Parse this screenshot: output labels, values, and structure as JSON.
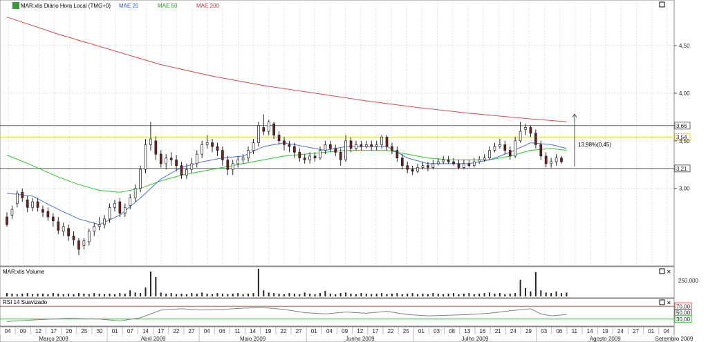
{
  "legend": {
    "title": "MAR:xlis Diário Hora Local (TMG+0)",
    "ma20": "MAE 20",
    "ma50": "MAE 50",
    "ma200": "MAE 200"
  },
  "volume_panel": {
    "title": "MAR:xlis Volume",
    "scale_label": "250.000"
  },
  "rsi_panel": {
    "title": "RSI 14 Suavizado",
    "upper_label": "70,00",
    "mid_label": "50,00",
    "lower_label": "30,00"
  },
  "annotation": {
    "text": "13,98%(0,45)"
  },
  "colors": {
    "ma20": "#4a6fe0",
    "ma50": "#28c828",
    "ma200": "#e04848",
    "rsi_line": "#808080",
    "yellow_line": "#e8e000",
    "candle": "#7a1a1a"
  },
  "chart_data": {
    "type": "candlestick",
    "price_axis": {
      "range": [
        2.2,
        4.95
      ],
      "ticks": [
        {
          "value": 4.5,
          "label": "4,50"
        },
        {
          "value": 4.0,
          "label": "4,00"
        },
        {
          "value": 3.5,
          "label": "3,50"
        },
        {
          "value": 3.0,
          "label": "3,00"
        }
      ],
      "levels": [
        {
          "name": "upper-line",
          "value": 3.66,
          "label": "3,66",
          "color": "#606060"
        },
        {
          "name": "yellow-line",
          "value": 3.54,
          "label": "3,54",
          "color": "#e8e000"
        },
        {
          "name": "lower-line",
          "value": 3.21,
          "label": "3,21",
          "color": "#606060"
        }
      ]
    },
    "x_axis": {
      "days": [
        "04",
        "09",
        "12",
        "17",
        "20",
        "25",
        "30",
        "01",
        "07",
        "14",
        "17",
        "22",
        "27",
        "04",
        "06",
        "11",
        "14",
        "19",
        "22",
        "27",
        "01",
        "04",
        "09",
        "12",
        "17",
        "22",
        "25",
        "01",
        "03",
        "08",
        "13",
        "16",
        "21",
        "24",
        "29",
        "03",
        "06",
        "11",
        "14",
        "19",
        "24",
        "27",
        "01",
        "04"
      ],
      "months": [
        {
          "label": "Março 2009",
          "start": 0
        },
        {
          "label": "Abril 2009",
          "start": 7
        },
        {
          "label": "Maio 2009",
          "start": 13
        },
        {
          "label": "Junho 2009",
          "start": 20
        },
        {
          "label": "Julho 2009",
          "start": 27
        },
        {
          "label": "Agosto 2009",
          "start": 35
        },
        {
          "label": "Setembro 2009",
          "start": 44
        }
      ]
    },
    "ohlc": [
      [
        2.7,
        2.62,
        2.75,
        2.6
      ],
      [
        2.72,
        2.78,
        2.82,
        2.68
      ],
      [
        2.84,
        2.95,
        2.98,
        2.8
      ],
      [
        2.96,
        2.9,
        3.0,
        2.86
      ],
      [
        2.88,
        2.8,
        2.92,
        2.75
      ],
      [
        2.8,
        2.86,
        2.9,
        2.76
      ],
      [
        2.86,
        2.8,
        2.9,
        2.76
      ],
      [
        2.78,
        2.75,
        2.82,
        2.7
      ],
      [
        2.76,
        2.7,
        2.8,
        2.66
      ],
      [
        2.7,
        2.66,
        2.74,
        2.6
      ],
      [
        2.65,
        2.56,
        2.7,
        2.52
      ],
      [
        2.55,
        2.6,
        2.64,
        2.5
      ],
      [
        2.58,
        2.5,
        2.62,
        2.45
      ],
      [
        2.5,
        2.46,
        2.55,
        2.4
      ],
      [
        2.45,
        2.36,
        2.48,
        2.3
      ],
      [
        2.4,
        2.45,
        2.48,
        2.36
      ],
      [
        2.44,
        2.55,
        2.58,
        2.4
      ],
      [
        2.55,
        2.6,
        2.64,
        2.5
      ],
      [
        2.6,
        2.62,
        2.7,
        2.56
      ],
      [
        2.62,
        2.68,
        2.72,
        2.58
      ],
      [
        2.68,
        2.8,
        2.84,
        2.64
      ],
      [
        2.8,
        2.84,
        2.88,
        2.76
      ],
      [
        2.86,
        2.74,
        2.9,
        2.7
      ],
      [
        2.74,
        2.8,
        2.84,
        2.7
      ],
      [
        2.82,
        2.9,
        2.94,
        2.78
      ],
      [
        2.9,
        3.0,
        3.04,
        2.86
      ],
      [
        3.0,
        3.2,
        3.24,
        2.96
      ],
      [
        3.2,
        3.46,
        3.52,
        3.16
      ],
      [
        3.46,
        3.52,
        3.7,
        3.4
      ],
      [
        3.5,
        3.36,
        3.55,
        3.3
      ],
      [
        3.36,
        3.26,
        3.4,
        3.22
      ],
      [
        3.26,
        3.32,
        3.36,
        3.2
      ],
      [
        3.32,
        3.3,
        3.38,
        3.24
      ],
      [
        3.3,
        3.24,
        3.35,
        3.18
      ],
      [
        3.24,
        3.14,
        3.28,
        3.1
      ],
      [
        3.14,
        3.2,
        3.26,
        3.1
      ],
      [
        3.2,
        3.26,
        3.32,
        3.16
      ],
      [
        3.26,
        3.36,
        3.4,
        3.22
      ],
      [
        3.36,
        3.46,
        3.5,
        3.32
      ],
      [
        3.46,
        3.48,
        3.56,
        3.42
      ],
      [
        3.48,
        3.44,
        3.52,
        3.38
      ],
      [
        3.44,
        3.4,
        3.48,
        3.34
      ],
      [
        3.4,
        3.3,
        3.44,
        3.24
      ],
      [
        3.3,
        3.2,
        3.34,
        3.14
      ],
      [
        3.2,
        3.26,
        3.3,
        3.14
      ],
      [
        3.26,
        3.3,
        3.34,
        3.22
      ],
      [
        3.3,
        3.32,
        3.36,
        3.26
      ],
      [
        3.32,
        3.4,
        3.44,
        3.28
      ],
      [
        3.4,
        3.48,
        3.52,
        3.36
      ],
      [
        3.48,
        3.66,
        3.7,
        3.44
      ],
      [
        3.64,
        3.6,
        3.78,
        3.56
      ],
      [
        3.6,
        3.7,
        3.72,
        3.56
      ],
      [
        3.68,
        3.56,
        3.7,
        3.52
      ],
      [
        3.56,
        3.5,
        3.6,
        3.46
      ],
      [
        3.5,
        3.46,
        3.54,
        3.4
      ],
      [
        3.46,
        3.44,
        3.5,
        3.38
      ],
      [
        3.44,
        3.38,
        3.48,
        3.32
      ],
      [
        3.38,
        3.32,
        3.42,
        3.28
      ],
      [
        3.32,
        3.3,
        3.36,
        3.26
      ],
      [
        3.3,
        3.34,
        3.38,
        3.26
      ],
      [
        3.34,
        3.32,
        3.38,
        3.28
      ],
      [
        3.32,
        3.4,
        3.44,
        3.3
      ],
      [
        3.4,
        3.46,
        3.5,
        3.36
      ],
      [
        3.46,
        3.42,
        3.5,
        3.38
      ],
      [
        3.42,
        3.38,
        3.46,
        3.34
      ],
      [
        3.38,
        3.3,
        3.42,
        3.24
      ],
      [
        3.3,
        3.5,
        3.56,
        3.28
      ],
      [
        3.5,
        3.42,
        3.54,
        3.38
      ],
      [
        3.42,
        3.46,
        3.5,
        3.4
      ],
      [
        3.46,
        3.44,
        3.5,
        3.4
      ],
      [
        3.44,
        3.46,
        3.5,
        3.42
      ],
      [
        3.46,
        3.44,
        3.5,
        3.4
      ],
      [
        3.44,
        3.46,
        3.5,
        3.4
      ],
      [
        3.46,
        3.54,
        3.56,
        3.42
      ],
      [
        3.54,
        3.44,
        3.56,
        3.4
      ],
      [
        3.44,
        3.4,
        3.48,
        3.36
      ],
      [
        3.4,
        3.32,
        3.44,
        3.28
      ],
      [
        3.32,
        3.24,
        3.36,
        3.2
      ],
      [
        3.24,
        3.2,
        3.28,
        3.16
      ],
      [
        3.2,
        3.18,
        3.24,
        3.14
      ],
      [
        3.18,
        3.22,
        3.26,
        3.16
      ],
      [
        3.22,
        3.24,
        3.28,
        3.2
      ],
      [
        3.24,
        3.22,
        3.28,
        3.18
      ],
      [
        3.22,
        3.26,
        3.3,
        3.2
      ],
      [
        3.26,
        3.28,
        3.32,
        3.24
      ],
      [
        3.28,
        3.3,
        3.34,
        3.26
      ],
      [
        3.3,
        3.28,
        3.34,
        3.26
      ],
      [
        3.28,
        3.26,
        3.32,
        3.24
      ],
      [
        3.26,
        3.22,
        3.3,
        3.2
      ],
      [
        3.22,
        3.26,
        3.3,
        3.2
      ],
      [
        3.26,
        3.24,
        3.3,
        3.22
      ],
      [
        3.24,
        3.28,
        3.32,
        3.22
      ],
      [
        3.28,
        3.3,
        3.34,
        3.26
      ],
      [
        3.3,
        3.32,
        3.36,
        3.28
      ],
      [
        3.32,
        3.4,
        3.44,
        3.3
      ],
      [
        3.4,
        3.44,
        3.48,
        3.38
      ],
      [
        3.44,
        3.46,
        3.52,
        3.42
      ],
      [
        3.46,
        3.4,
        3.5,
        3.36
      ],
      [
        3.4,
        3.34,
        3.44,
        3.3
      ],
      [
        3.34,
        3.5,
        3.54,
        3.32
      ],
      [
        3.5,
        3.6,
        3.7,
        3.48
      ],
      [
        3.62,
        3.64,
        3.68,
        3.56
      ],
      [
        3.64,
        3.58,
        3.66,
        3.54
      ],
      [
        3.58,
        3.46,
        3.62,
        3.42
      ],
      [
        3.46,
        3.34,
        3.5,
        3.3
      ],
      [
        3.34,
        3.26,
        3.38,
        3.22
      ],
      [
        3.26,
        3.28,
        3.32,
        3.22
      ],
      [
        3.28,
        3.32,
        3.36,
        3.24
      ],
      [
        3.32,
        3.28,
        3.34,
        3.26
      ]
    ],
    "ma20": [
      [
        0,
        2.95
      ],
      [
        5,
        2.92
      ],
      [
        10,
        2.78
      ],
      [
        14,
        2.68
      ],
      [
        18,
        2.62
      ],
      [
        22,
        2.72
      ],
      [
        26,
        2.9
      ],
      [
        30,
        3.1
      ],
      [
        34,
        3.22
      ],
      [
        38,
        3.28
      ],
      [
        42,
        3.32
      ],
      [
        46,
        3.34
      ],
      [
        50,
        3.44
      ],
      [
        54,
        3.48
      ],
      [
        58,
        3.44
      ],
      [
        62,
        3.4
      ],
      [
        66,
        3.44
      ],
      [
        70,
        3.44
      ],
      [
        74,
        3.44
      ],
      [
        78,
        3.32
      ],
      [
        82,
        3.26
      ],
      [
        86,
        3.26
      ],
      [
        90,
        3.26
      ],
      [
        94,
        3.3
      ],
      [
        98,
        3.38
      ],
      [
        102,
        3.48
      ],
      [
        106,
        3.46
      ],
      [
        109,
        3.42
      ]
    ],
    "ma50": [
      [
        0,
        3.35
      ],
      [
        5,
        3.24
      ],
      [
        10,
        3.12
      ],
      [
        14,
        3.04
      ],
      [
        18,
        2.98
      ],
      [
        22,
        2.96
      ],
      [
        26,
        3.0
      ],
      [
        30,
        3.08
      ],
      [
        34,
        3.14
      ],
      [
        38,
        3.18
      ],
      [
        42,
        3.22
      ],
      [
        46,
        3.26
      ],
      [
        50,
        3.3
      ],
      [
        54,
        3.34
      ],
      [
        58,
        3.36
      ],
      [
        62,
        3.38
      ],
      [
        66,
        3.4
      ],
      [
        70,
        3.4
      ],
      [
        74,
        3.4
      ],
      [
        78,
        3.36
      ],
      [
        82,
        3.32
      ],
      [
        86,
        3.3
      ],
      [
        90,
        3.3
      ],
      [
        94,
        3.3
      ],
      [
        98,
        3.34
      ],
      [
        102,
        3.4
      ],
      [
        106,
        3.42
      ],
      [
        109,
        3.4
      ]
    ],
    "ma200": [
      [
        0,
        4.8
      ],
      [
        10,
        4.62
      ],
      [
        20,
        4.46
      ],
      [
        30,
        4.3
      ],
      [
        40,
        4.18
      ],
      [
        50,
        4.08
      ],
      [
        60,
        4.0
      ],
      [
        70,
        3.92
      ],
      [
        80,
        3.85
      ],
      [
        90,
        3.79
      ],
      [
        100,
        3.74
      ],
      [
        109,
        3.7
      ]
    ],
    "volume": [
      0.12,
      0.1,
      0.08,
      0.1,
      0.12,
      0.08,
      0.1,
      0.1,
      0.08,
      0.12,
      0.1,
      0.08,
      0.1,
      0.08,
      0.12,
      0.1,
      0.08,
      0.12,
      0.1,
      0.08,
      0.1,
      0.08,
      0.12,
      0.1,
      0.22,
      0.14,
      0.12,
      0.32,
      0.9,
      0.7,
      0.14,
      0.1,
      0.12,
      0.08,
      0.1,
      0.08,
      0.12,
      0.1,
      0.14,
      0.1,
      0.08,
      0.12,
      0.1,
      0.08,
      0.1,
      0.12,
      0.08,
      0.1,
      0.12,
      1.0,
      0.22,
      0.14,
      0.12,
      0.1,
      0.08,
      0.12,
      0.1,
      0.08,
      0.14,
      0.1,
      0.08,
      0.12,
      0.2,
      0.1,
      0.08,
      0.12,
      0.14,
      0.1,
      0.08,
      0.12,
      0.1,
      0.08,
      0.1,
      0.12,
      0.08,
      0.1,
      0.12,
      0.08,
      0.1,
      0.12,
      0.08,
      0.1,
      0.08,
      0.12,
      0.1,
      0.08,
      0.1,
      0.12,
      0.08,
      0.1,
      0.12,
      0.08,
      0.1,
      0.12,
      0.14,
      0.1,
      0.12,
      0.08,
      0.1,
      0.12,
      0.6,
      0.3,
      0.18,
      0.88,
      0.22,
      0.14,
      0.12,
      0.18,
      0.12,
      0.14
    ],
    "rsi": [
      [
        0,
        22
      ],
      [
        6,
        28
      ],
      [
        12,
        32
      ],
      [
        18,
        30
      ],
      [
        22,
        24
      ],
      [
        26,
        34
      ],
      [
        30,
        58
      ],
      [
        34,
        62
      ],
      [
        38,
        58
      ],
      [
        42,
        60
      ],
      [
        46,
        64
      ],
      [
        50,
        66
      ],
      [
        54,
        60
      ],
      [
        58,
        50
      ],
      [
        62,
        46
      ],
      [
        66,
        52
      ],
      [
        70,
        48
      ],
      [
        74,
        54
      ],
      [
        78,
        44
      ],
      [
        82,
        40
      ],
      [
        86,
        42
      ],
      [
        90,
        44
      ],
      [
        94,
        48
      ],
      [
        98,
        56
      ],
      [
        102,
        62
      ],
      [
        104,
        46
      ],
      [
        106,
        40
      ],
      [
        109,
        44
      ]
    ]
  }
}
